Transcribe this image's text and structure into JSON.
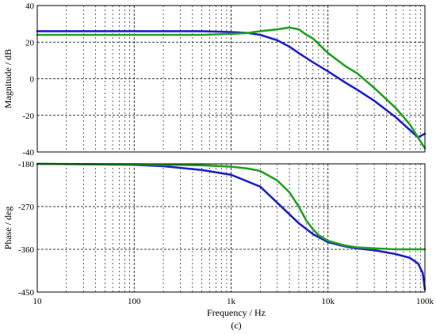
{
  "chart_data": [
    {
      "type": "line",
      "panel": "top",
      "ylabel": "Magnitude / dB",
      "xlabel": "",
      "xscale": "log",
      "xlim": [
        10,
        100000
      ],
      "ylim": [
        -40,
        40
      ],
      "yticks": [
        "40",
        "20",
        "0",
        "-20",
        "-40"
      ],
      "ytick_values": [
        40,
        20,
        0,
        -20,
        -40
      ],
      "grid": true,
      "series": [
        {
          "color": "#1f1fcc",
          "x": [
            10,
            100,
            500,
            1000,
            1500,
            2000,
            3000,
            4000,
            5000,
            7000,
            10000,
            15000,
            20000,
            30000,
            50000,
            70000,
            85000,
            100000
          ],
          "y": [
            26,
            26,
            26,
            25.5,
            25,
            24,
            21,
            17.5,
            14,
            9,
            4,
            -2,
            -6,
            -12,
            -21,
            -28,
            -32,
            -30
          ]
        },
        {
          "color": "#22a022",
          "x": [
            10,
            100,
            500,
            1000,
            1500,
            2000,
            3000,
            4000,
            5000,
            6000,
            7000,
            10000,
            15000,
            20000,
            30000,
            50000,
            70000,
            100000
          ],
          "y": [
            24,
            24,
            24,
            24.5,
            25,
            26,
            27,
            28,
            27,
            24,
            22,
            14,
            7,
            3,
            -5,
            -16,
            -25,
            -38
          ]
        }
      ]
    },
    {
      "type": "line",
      "panel": "bottom",
      "ylabel": "Phase / deg",
      "xlabel": "Frequency / Hz",
      "xscale": "log",
      "xlim": [
        10,
        100000
      ],
      "ylim": [
        -450,
        -180
      ],
      "yticks": [
        "-180",
        "-270",
        "-360",
        "-450"
      ],
      "ytick_values": [
        -180,
        -270,
        -360,
        -450
      ],
      "xticks": [
        "10",
        "100",
        "1k",
        "10k",
        "100k"
      ],
      "xtick_values": [
        10,
        100,
        1000,
        10000,
        100000
      ],
      "grid": true,
      "series": [
        {
          "color": "#1f1fcc",
          "x": [
            10,
            100,
            200,
            500,
            1000,
            2000,
            3000,
            5000,
            7000,
            10000,
            15000,
            20000,
            30000,
            50000,
            70000,
            85000,
            95000,
            100000
          ],
          "y": [
            -180,
            -182,
            -185,
            -193,
            -203,
            -228,
            -262,
            -305,
            -328,
            -345,
            -354,
            -358,
            -362,
            -370,
            -378,
            -390,
            -410,
            -445
          ]
        },
        {
          "color": "#22a022",
          "x": [
            10,
            100,
            500,
            1000,
            1500,
            2000,
            3000,
            4000,
            5000,
            6000,
            7000,
            8000,
            10000,
            15000,
            20000,
            30000,
            50000,
            100000
          ],
          "y": [
            -180,
            -181,
            -183,
            -186,
            -190,
            -195,
            -215,
            -240,
            -270,
            -300,
            -318,
            -330,
            -342,
            -352,
            -356,
            -358,
            -360,
            -360
          ]
        }
      ]
    }
  ],
  "caption": "(c)"
}
